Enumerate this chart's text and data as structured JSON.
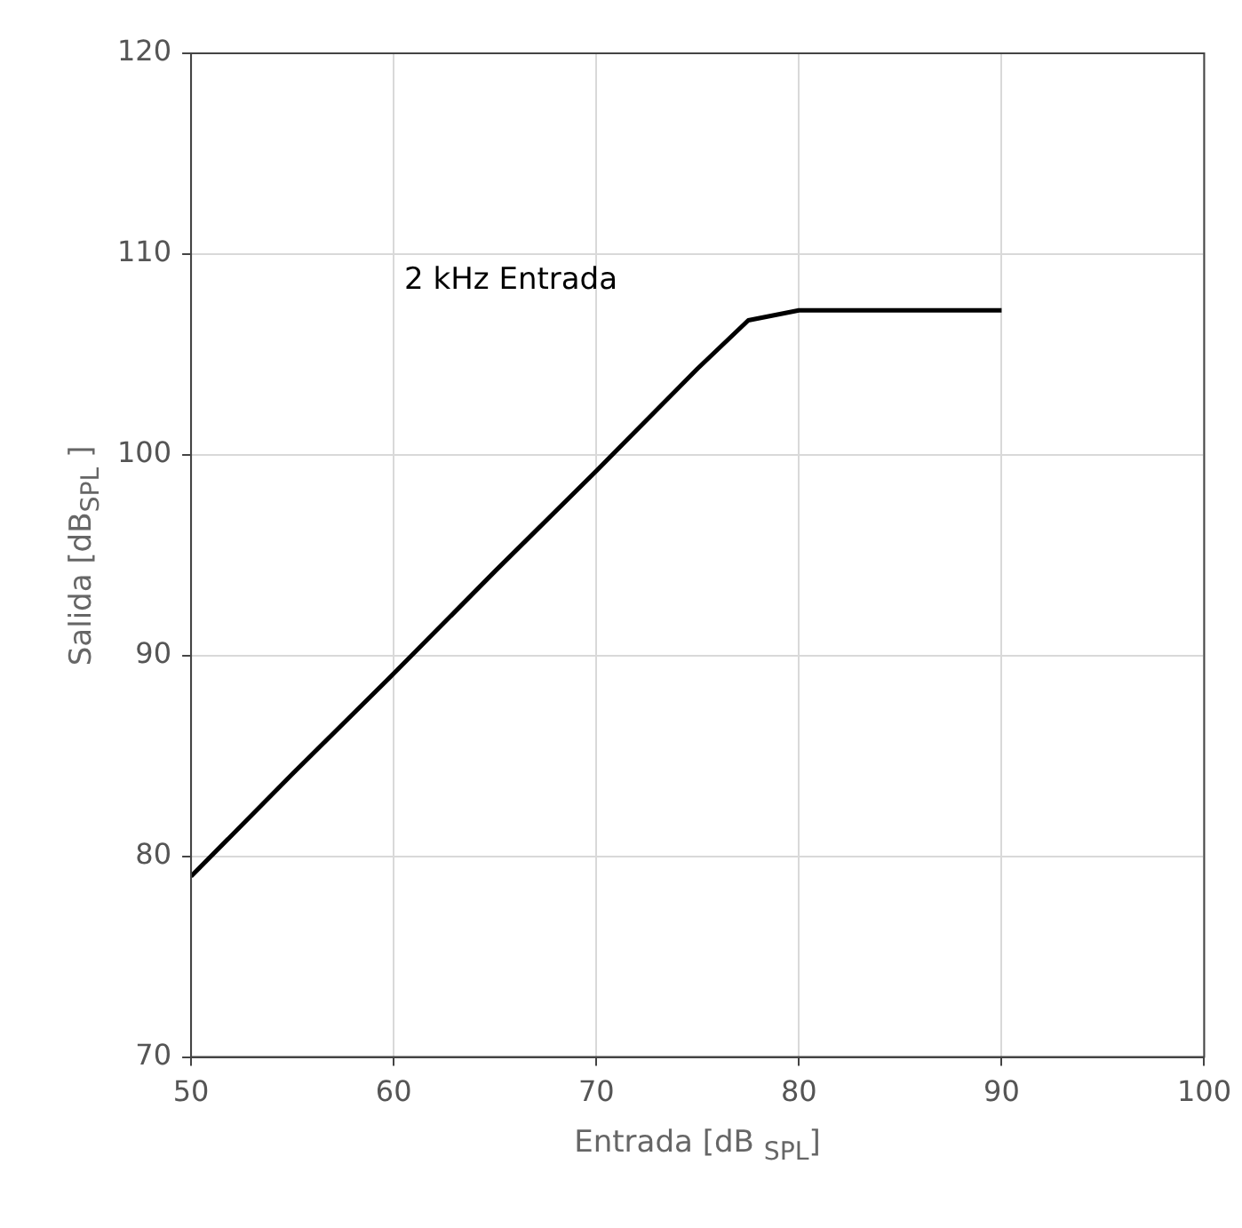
{
  "chart_data": {
    "type": "line",
    "xlabel": "Entrada [dB $_{SPL}$]",
    "ylabel": "Salida [dB$_{SPL}$ ]",
    "x": [
      50,
      55,
      60,
      65,
      70,
      75,
      77.5,
      80,
      90
    ],
    "series": [
      {
        "color": "#000000",
        "values": [
          79,
          84.1,
          89.1,
          94.2,
          99.2,
          104.3,
          106.7,
          107.2,
          107.2
        ]
      }
    ],
    "xlim": [
      50,
      100
    ],
    "xticks": [
      50,
      60,
      70,
      80,
      90,
      100
    ],
    "ylim": [
      70,
      120
    ],
    "yticks": [
      70,
      80,
      90,
      100,
      110,
      120
    ],
    "grid": true,
    "marker": "none",
    "line_style": "solid",
    "annotations": [
      "2 kHz Entrada"
    ]
  }
}
